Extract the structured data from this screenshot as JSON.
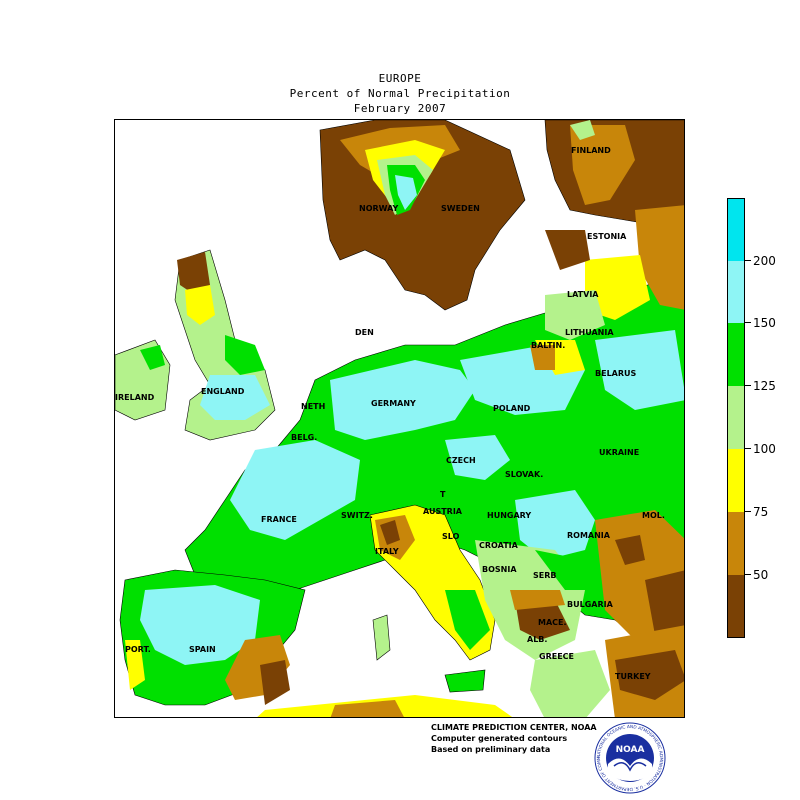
{
  "title": {
    "line1": "EUROPE",
    "line2": "Percent of Normal Precipitation",
    "line3": "February 2007"
  },
  "legend": {
    "ticks": [
      "200",
      "150",
      "125",
      "100",
      "75",
      "50"
    ],
    "colors": {
      "above_200": "#00e5ee",
      "c150_200": "#8ef5f5",
      "c125_150": "#00e000",
      "c100_125": "#b4f28c",
      "c75_100": "#ffff00",
      "c50_75": "#c8860a",
      "below_50": "#7a4105"
    }
  },
  "countries": [
    "FINLAND",
    "NORWAY",
    "SWEDEN",
    "ESTONIA",
    "LATVIA",
    "LITHUANIA",
    "DEN",
    "BALTIN.",
    "BELARUS",
    "IRELAND",
    "ENGLAND",
    "NETH",
    "GERMANY",
    "POLAND",
    "BELG.",
    "CZECH",
    "SLOVAK.",
    "UKRAINE",
    "FRANCE",
    "SWITZ.",
    "AUSTRIA",
    "HUNGARY",
    "MOL.",
    "ROMANIA",
    "SLO",
    "CROATIA",
    "BOSNIA",
    "SERB",
    "ITALY",
    "BULGARIA",
    "MACE.",
    "ALB.",
    "GREECE",
    "PORT.",
    "SPAIN",
    "TURKEY",
    "T"
  ],
  "credits": {
    "line1": "CLIMATE PREDICTION CENTER, NOAA",
    "line2": "Computer generated contours",
    "line3": "Based on preliminary data"
  },
  "logo": {
    "text": "NOAA",
    "ring_text": "NATIONAL OCEANIC AND ATMOSPHERIC ADMINISTRATION · U.S. DEPARTMENT OF COMMERCE"
  }
}
